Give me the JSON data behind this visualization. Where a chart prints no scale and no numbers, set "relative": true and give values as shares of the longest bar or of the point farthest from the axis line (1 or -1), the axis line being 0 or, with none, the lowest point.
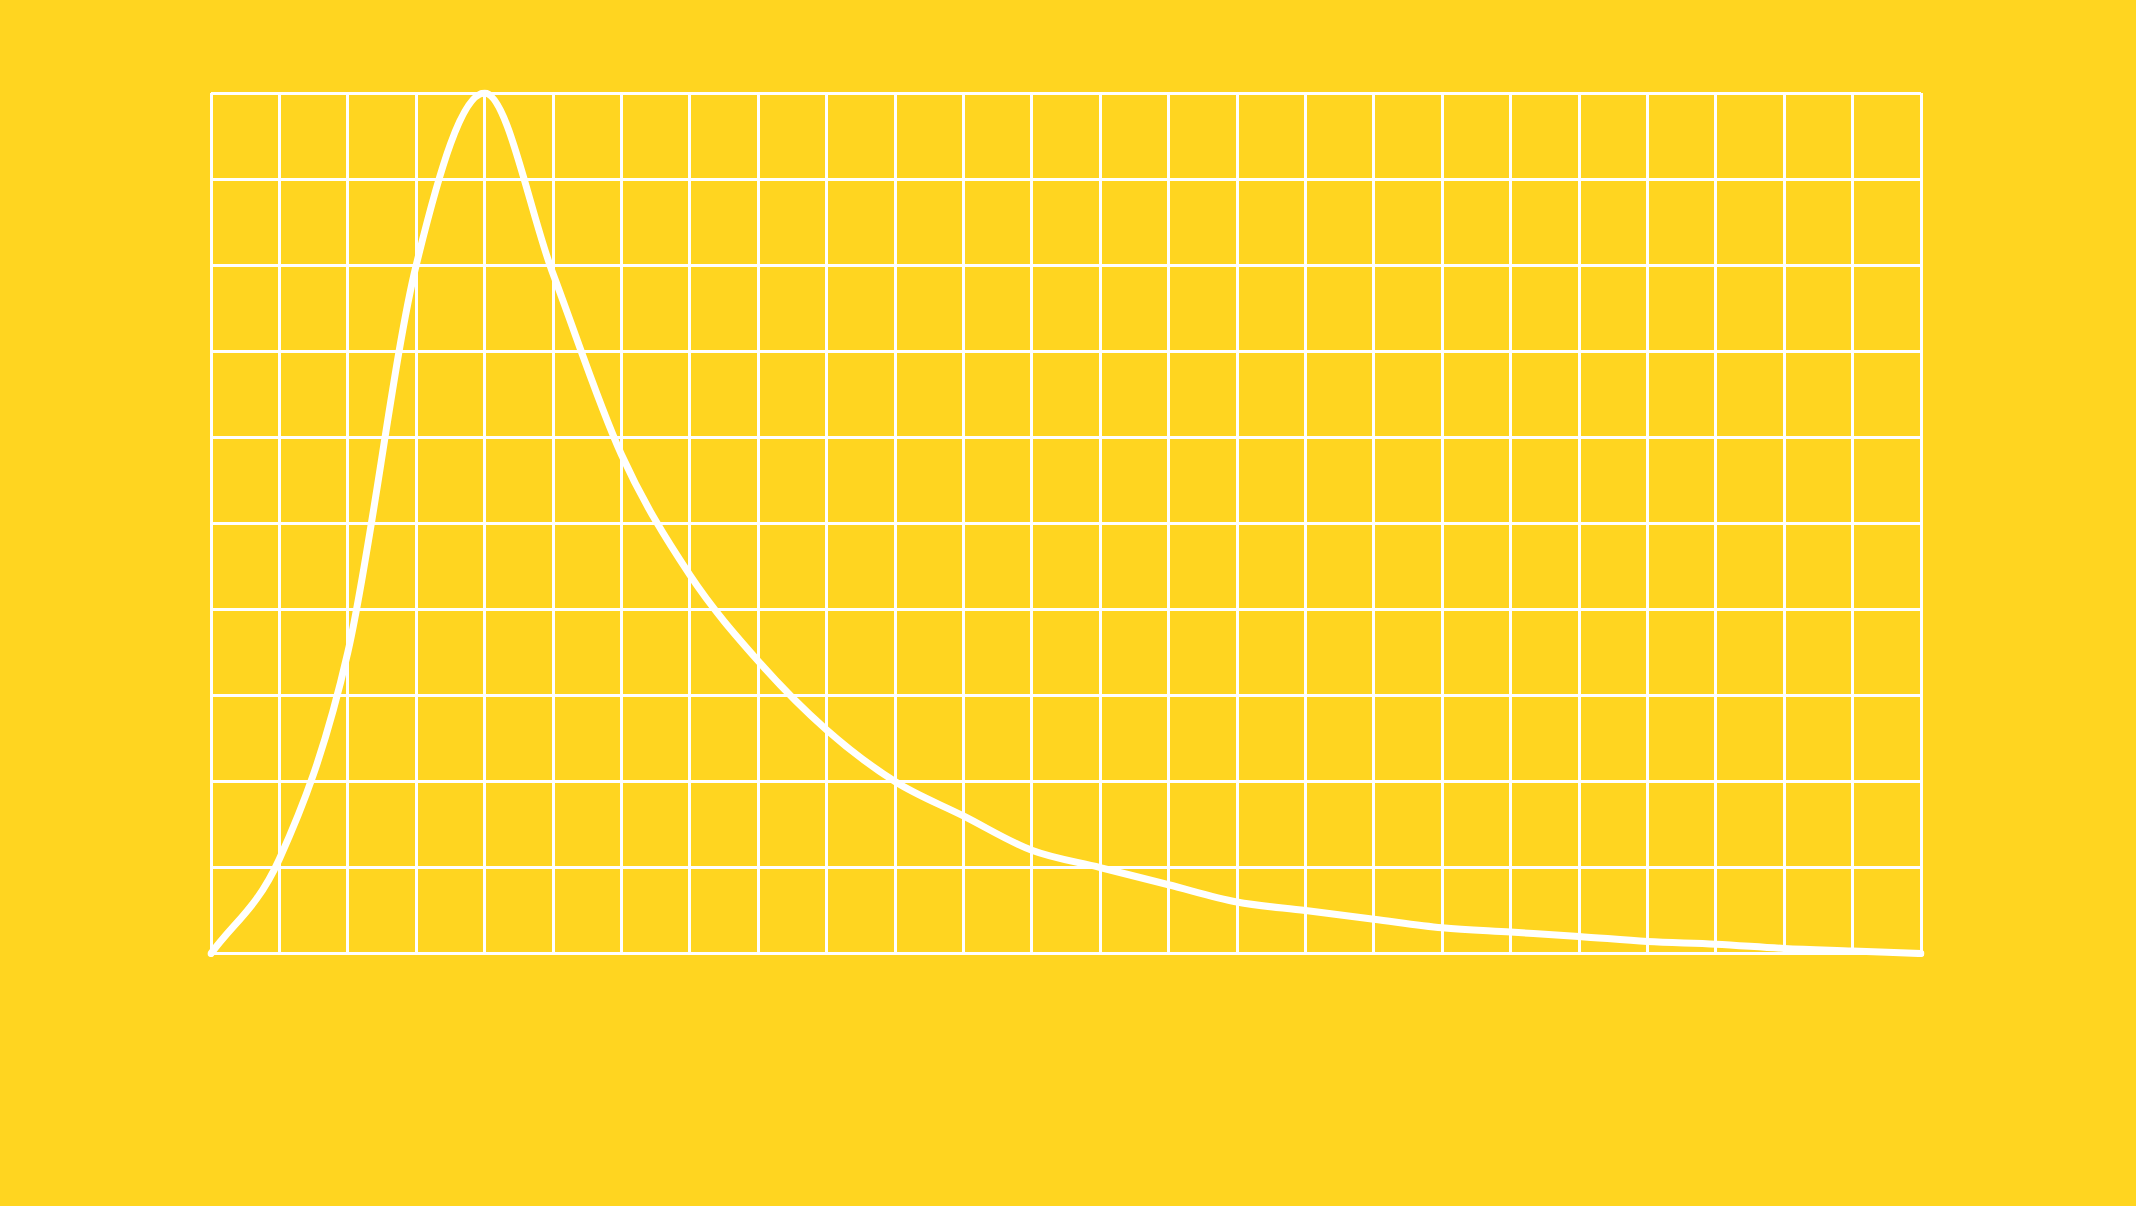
{
  "chart_data": {
    "type": "line",
    "relative": true,
    "grid": true,
    "marker": "none",
    "categories": [
      null,
      null,
      null,
      null,
      null,
      null,
      null,
      null,
      null,
      null,
      null,
      null,
      null,
      null,
      null,
      null,
      null,
      null,
      null,
      null,
      null,
      null,
      null,
      null,
      null,
      null
    ],
    "series": [
      {
        "color": "#ffffff",
        "values": [
          0,
          0.11,
          0.35,
          0.8,
          1,
          0.79,
          0.58,
          0.44,
          0.34,
          0.26,
          0.2,
          0.16,
          0.12,
          0.1,
          0.08,
          0.06,
          0.05,
          0.04,
          0.03,
          0.025,
          0.02,
          0.014,
          0.011,
          0.006,
          0.003,
          0
        ]
      }
    ]
  }
}
